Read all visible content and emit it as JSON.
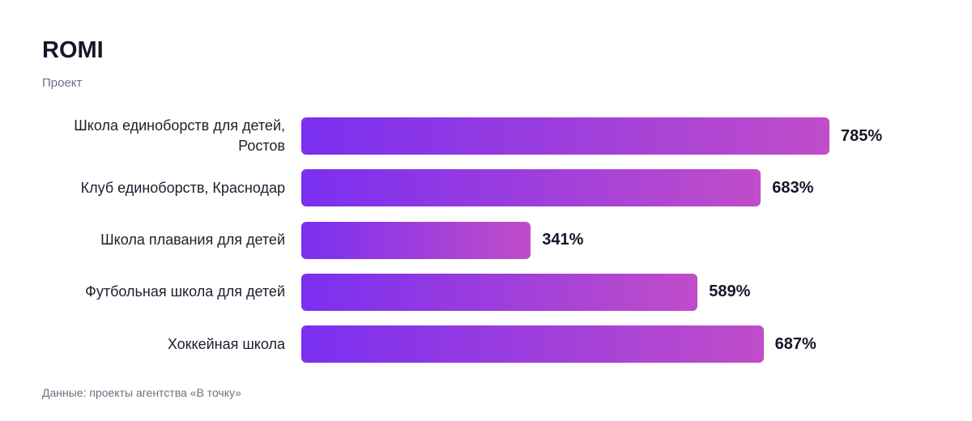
{
  "chart_data": {
    "type": "bar",
    "orientation": "horizontal",
    "title": "ROMI",
    "subtitle": "Проект",
    "categories": [
      "Школа единоборств для детей, Ростов",
      "Клуб единоборств, Краснодар",
      "Школа плавания для детей",
      "Футбольная школа для детей",
      "Хоккейная школа"
    ],
    "values": [
      785,
      683,
      341,
      589,
      687
    ],
    "value_labels": [
      "785%",
      "683%",
      "341%",
      "589%",
      "687%"
    ],
    "gradient": [
      "#7a2ff0",
      "#c04dc9"
    ],
    "source": "Данные: проекты агентства «В точку»"
  }
}
